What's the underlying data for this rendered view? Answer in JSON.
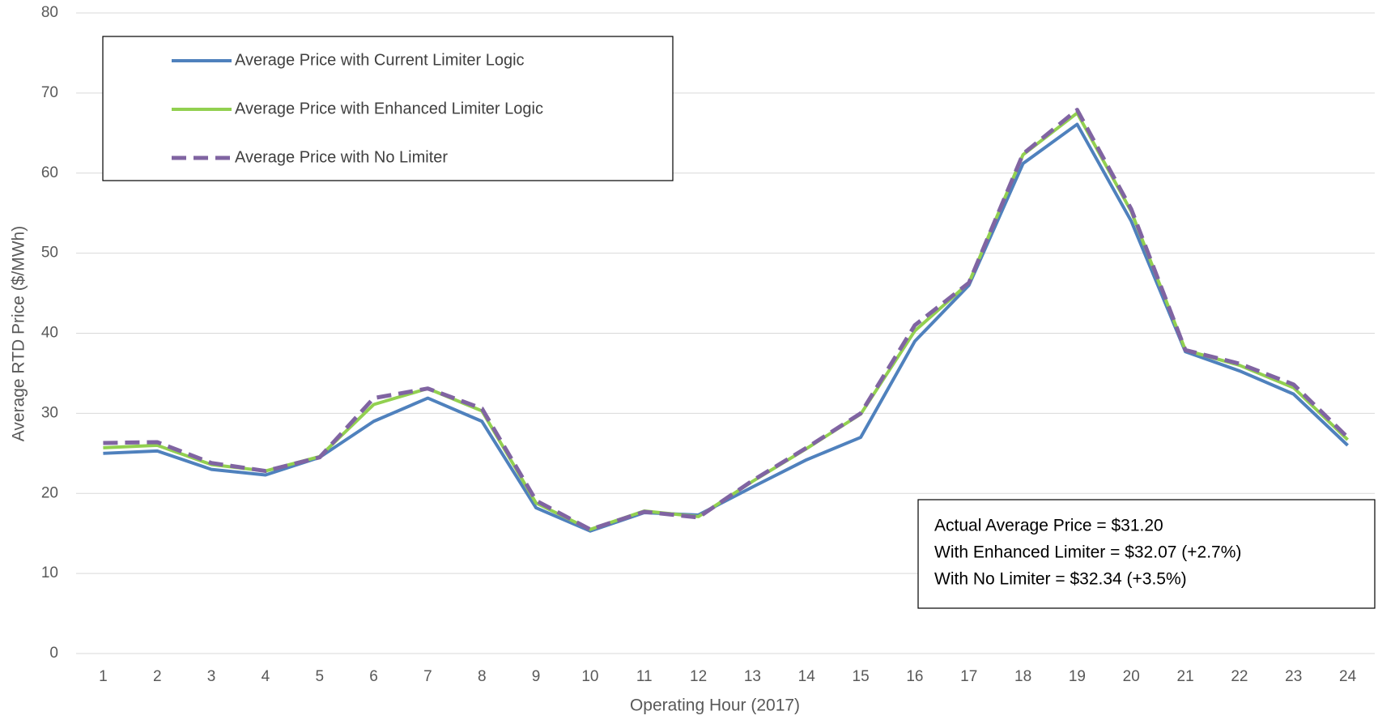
{
  "chart_data": {
    "type": "line",
    "xlabel": "Operating Hour (2017)",
    "ylabel": "Average RTD Price ($/MWh)",
    "categories": [
      "1",
      "2",
      "3",
      "4",
      "5",
      "6",
      "7",
      "8",
      "9",
      "10",
      "11",
      "12",
      "13",
      "14",
      "15",
      "16",
      "17",
      "18",
      "19",
      "20",
      "21",
      "22",
      "23",
      "24"
    ],
    "series": [
      {
        "name": "Average Price with Current Limiter Logic",
        "color": "#4f81bd",
        "dash": false,
        "values": [
          25.0,
          25.3,
          23.0,
          22.3,
          24.5,
          29.0,
          31.9,
          29.0,
          18.2,
          15.3,
          17.6,
          17.3,
          20.8,
          24.2,
          27.0,
          39.0,
          46.0,
          61.2,
          66.1,
          54.0,
          37.7,
          35.3,
          32.4,
          26.0
        ]
      },
      {
        "name": "Average Price with Enhanced Limiter Logic",
        "color": "#92d050",
        "dash": false,
        "values": [
          25.7,
          26.0,
          23.6,
          22.8,
          24.6,
          31.1,
          33.1,
          30.3,
          18.8,
          15.5,
          17.8,
          17.1,
          21.5,
          25.6,
          29.9,
          40.3,
          46.3,
          62.3,
          67.5,
          55.2,
          37.9,
          36.0,
          33.2,
          26.7
        ]
      },
      {
        "name": "Average Price with No Limiter",
        "color": "#8064a2",
        "dash": true,
        "values": [
          26.3,
          26.4,
          23.8,
          22.8,
          24.5,
          31.9,
          33.1,
          30.6,
          19.1,
          15.5,
          17.7,
          17.0,
          21.6,
          25.7,
          30.0,
          41.0,
          46.3,
          62.4,
          67.9,
          55.5,
          37.9,
          36.2,
          33.6,
          27.0
        ]
      }
    ],
    "ylim": [
      0,
      80
    ],
    "yticks": [
      0,
      10,
      20,
      30,
      40,
      50,
      60,
      70,
      80
    ],
    "grid": true,
    "annotation": [
      "Actual Average Price = $31.20",
      "With Enhanced Limiter = $32.07 (+2.7%)",
      "With No Limiter = $32.34 (+3.5%)"
    ]
  }
}
